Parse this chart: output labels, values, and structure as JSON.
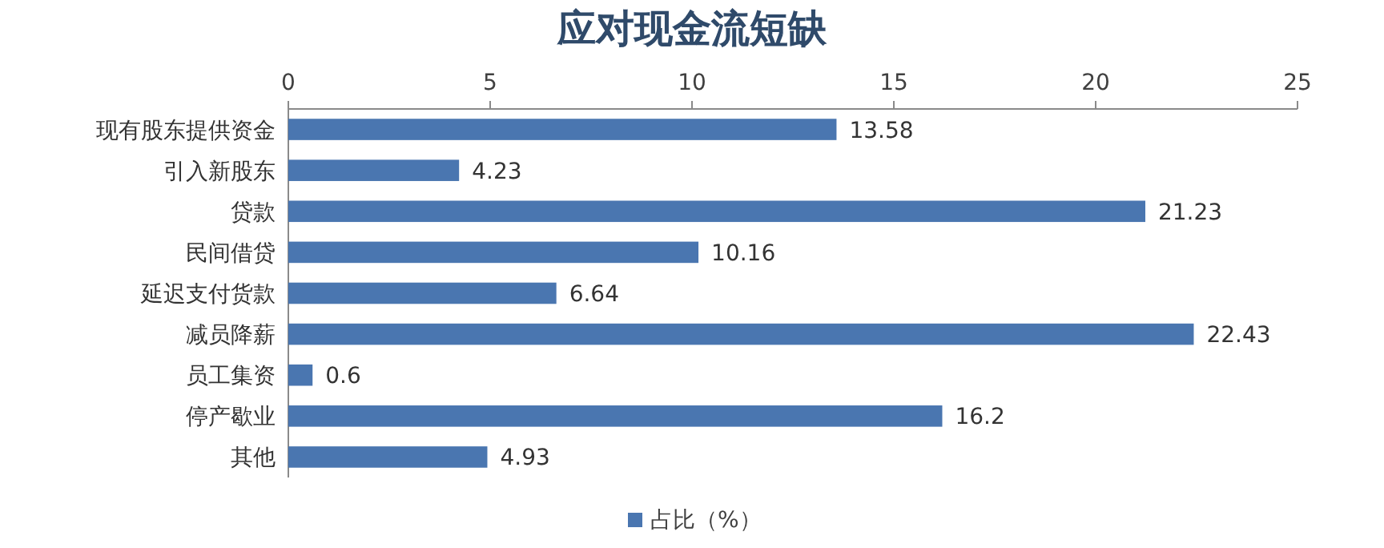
{
  "chart_data": {
    "type": "bar",
    "orientation": "horizontal",
    "title": "应对现金流短缺",
    "categories": [
      "现有股东提供资金",
      "引入新股东",
      "贷款",
      "民间借贷",
      "延迟支付货款",
      "减员降薪",
      "员工集资",
      "停产歇业",
      "其他"
    ],
    "series": [
      {
        "name": "占比（%）",
        "color": "#4a76b0",
        "values": [
          13.58,
          4.23,
          21.23,
          10.16,
          6.64,
          22.43,
          0.6,
          16.2,
          4.93
        ]
      }
    ],
    "xlim": [
      0,
      25
    ],
    "xticks": [
      0,
      5,
      10,
      15,
      20,
      25
    ],
    "data_labels": true,
    "legend": "bottom",
    "grid": false
  }
}
